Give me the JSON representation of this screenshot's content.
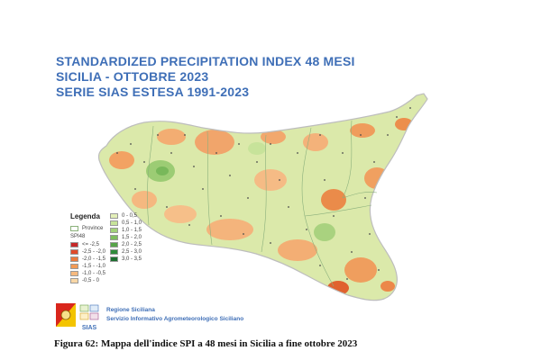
{
  "title": {
    "line1": "STANDARDIZED PRECIPITATION INDEX 48 MESI",
    "line2": "SICILIA - OTTOBRE 2023",
    "line3": "SERIE SIAS ESTESA 1991-2023"
  },
  "legend": {
    "title": "Legenda",
    "province_label": "Province",
    "spi_label": "SPI48",
    "dry_classes": [
      {
        "label": "<= -2,5",
        "color": "#c62828"
      },
      {
        "label": "-2,5 - -2,0",
        "color": "#e04a2a"
      },
      {
        "label": "-2,0 - -1,5",
        "color": "#ec7a3c"
      },
      {
        "label": "-1,5 - -1,0",
        "color": "#f29a55"
      },
      {
        "label": "-1,0 - -0,5",
        "color": "#f6b97e"
      },
      {
        "label": "-0,5 - 0",
        "color": "#f9d7a6"
      }
    ],
    "wet_classes": [
      {
        "label": "0 - 0,5",
        "color": "#e3efb8"
      },
      {
        "label": "0,5 - 1,0",
        "color": "#c7e39a"
      },
      {
        "label": "1,0 - 1,5",
        "color": "#a3d17a"
      },
      {
        "label": "1,5 - 2,0",
        "color": "#7fbd5f"
      },
      {
        "label": "2,0 - 2,5",
        "color": "#56a348"
      },
      {
        "label": "2,5 - 3,0",
        "color": "#2f8a3b"
      },
      {
        "label": "3,0 - 3,5",
        "color": "#1b6e2e"
      }
    ]
  },
  "organization": {
    "line1": "Regione Siciliana",
    "line2": "Servizio Informativo Agrometeorologico Siciliano",
    "logo_text": "SIAS"
  },
  "caption": "Figura 62: Mappa dell'indice SPI a 48 mesi in Sicilia a fine ottobre 2023",
  "colors": {
    "title": "#3f6fb7",
    "base_land": "#d9e8a8",
    "outline": "#c9c9c9"
  }
}
